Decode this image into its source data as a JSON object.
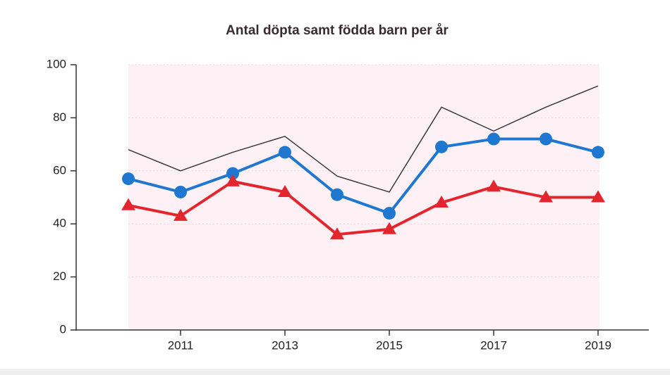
{
  "chart_data": {
    "type": "line",
    "title": "Antal döpta samt födda barn per år",
    "categories": [
      null,
      "2011",
      null,
      "2013",
      null,
      "2015",
      null,
      "2017",
      null,
      "2019"
    ],
    "series": [
      {
        "color": "#3a3a3a",
        "marker": "none",
        "values": [
          68,
          60,
          67,
          73,
          58,
          52,
          84,
          75,
          84,
          92
        ]
      },
      {
        "color": "#1f77d0",
        "marker": "circle",
        "values": [
          57,
          52,
          59,
          67,
          51,
          44,
          69,
          72,
          72,
          67
        ]
      },
      {
        "color": "#e3262d",
        "marker": "triangle",
        "values": [
          47,
          43,
          56,
          52,
          36,
          38,
          48,
          54,
          50,
          50
        ]
      }
    ],
    "ylim": [
      0,
      100
    ],
    "yticks": [
      0,
      20,
      40,
      60,
      80,
      100
    ],
    "grid": true
  }
}
